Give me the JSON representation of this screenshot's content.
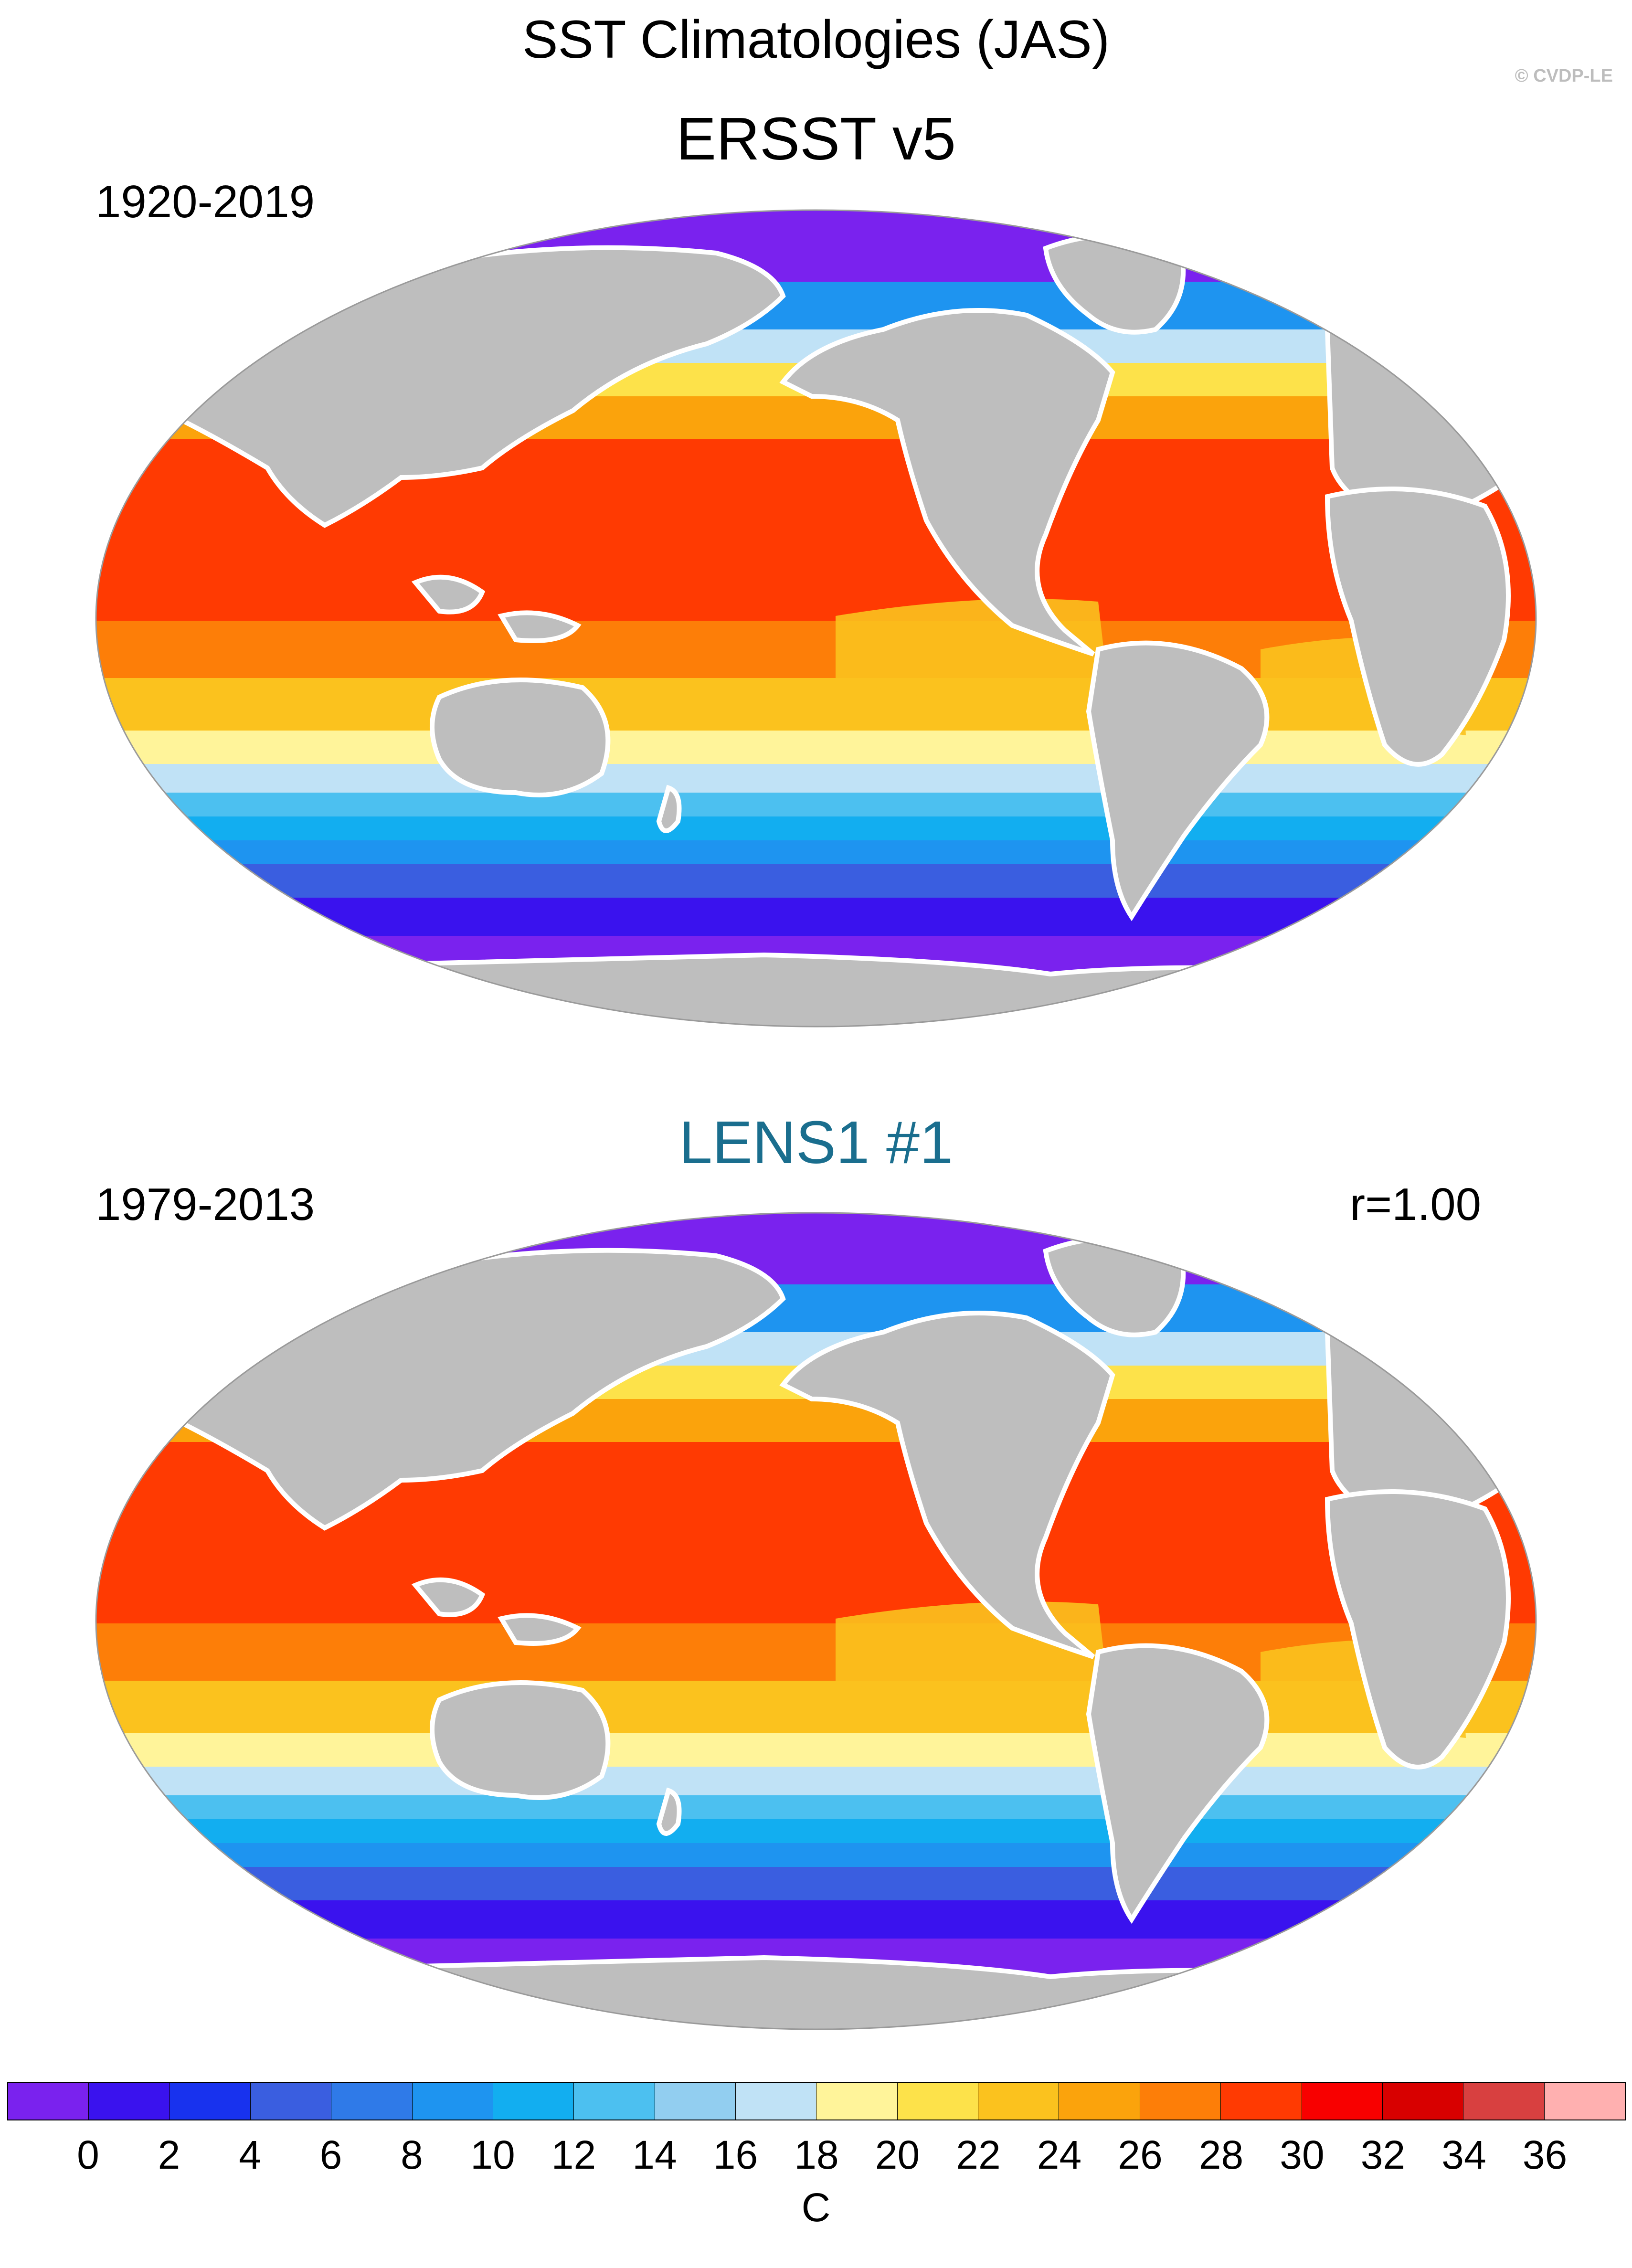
{
  "title": "SST Climatologies (JAS)",
  "credit": "© CVDP-LE",
  "panels": [
    {
      "title": "ERSST v5",
      "period": "1920-2019",
      "stat": "",
      "title_color": "#000000"
    },
    {
      "title": "LENS1 #1",
      "period": "1979-2013",
      "stat": "r=1.00",
      "title_color": "#1a6e8e"
    }
  ],
  "colorbar": {
    "units": "C",
    "colors": [
      "#7a22ee",
      "#3a12ee",
      "#1832ee",
      "#3a5ee0",
      "#2f7ae8",
      "#1e94f0",
      "#12aef0",
      "#4cc0f0",
      "#92cef0",
      "#c0e2f6",
      "#fff49a",
      "#fde24a",
      "#fbc21e",
      "#fba30c",
      "#fd7e08",
      "#ff3a02",
      "#f80000",
      "#d80000",
      "#d84040",
      "#ffb0b0"
    ],
    "labels": [
      "0",
      "2",
      "4",
      "6",
      "8",
      "10",
      "12",
      "14",
      "16",
      "18",
      "20",
      "22",
      "24",
      "26",
      "28",
      "30",
      "32",
      "34",
      "36"
    ]
  },
  "colors": {
    "land": "#bebebe",
    "antarctic_ice": "#ffffff"
  }
}
